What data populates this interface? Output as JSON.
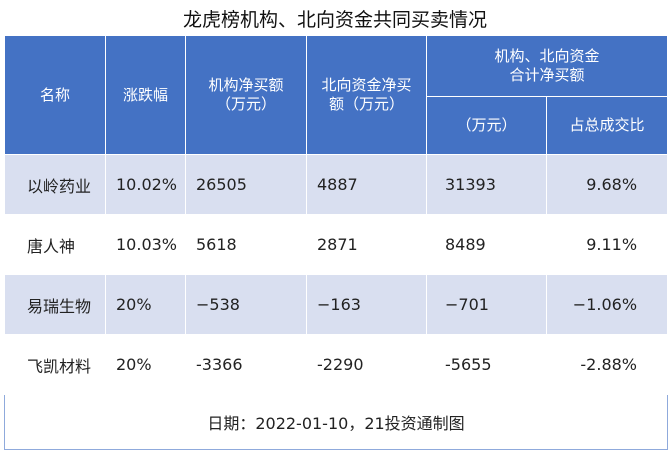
{
  "title": "龙虎榜机构、北向资金共同买卖情况",
  "headers": {
    "name": "名称",
    "change": "涨跌幅",
    "inst_net": "机构净买额（万元）",
    "north_net": "北向资金净买额（万元）",
    "combined_group": "机构、北向资金\n合计净买额",
    "combined_unit": "（万元）",
    "turnover_ratio": "占总成交比"
  },
  "rows": [
    {
      "name": "以岭药业",
      "change": "10.02%",
      "inst_net": "26505",
      "north_net": "4887",
      "combined": "31393",
      "ratio": "9.68%"
    },
    {
      "name": "唐人神",
      "change": "10.03%",
      "inst_net": "5618",
      "north_net": "2871",
      "combined": "8489",
      "ratio": "9.11%"
    },
    {
      "name": "易瑞生物",
      "change": "20%",
      "inst_net": "−538",
      "north_net": "−163",
      "combined": "−701",
      "ratio": "−1.06%"
    },
    {
      "name": "飞凯材料",
      "change": "20%",
      "inst_net": "-3366",
      "north_net": "-2290",
      "combined": "-5655",
      "ratio": "-2.88%"
    }
  ],
  "footer": "日期：2022-01-10，21投资通制图",
  "colors": {
    "header_bg": "#4472c4",
    "row_shade": "#d9dff0"
  }
}
